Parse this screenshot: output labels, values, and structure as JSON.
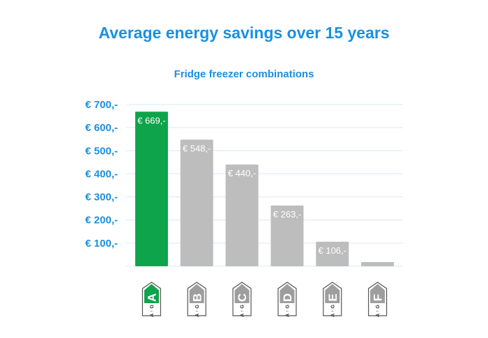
{
  "title": "Average energy savings over 15 years",
  "subtitle": "Fridge freezer combinations",
  "chart_data": {
    "type": "bar",
    "title": "Average energy savings over 15 years",
    "subtitle": "Fridge freezer combinations",
    "categories": [
      "A",
      "B",
      "C",
      "D",
      "E",
      "F"
    ],
    "values": [
      669,
      548,
      440,
      263,
      106,
      18
    ],
    "data_labels": [
      "€ 669,-",
      "€ 548,-",
      "€ 440,-",
      "€ 263,-",
      "€ 106,-",
      ""
    ],
    "y_ticks": [
      100,
      200,
      300,
      400,
      500,
      600,
      700
    ],
    "y_tick_labels": [
      "€ 100,-",
      "€ 200,-",
      "€ 300,-",
      "€ 400,-",
      "€ 500,-",
      "€ 600,-",
      "€ 700,-"
    ],
    "ylim": [
      0,
      700
    ],
    "grid": true,
    "xlabel": "",
    "ylabel": "",
    "colors": {
      "highlight": "#0ea44b",
      "default": "#bdbdbd",
      "axis_text": "#1a8fe0",
      "grid": "#d6e9f5"
    },
    "highlight_index": 0
  },
  "badges": {
    "scale_top": "A",
    "scale_bottom": "G"
  }
}
